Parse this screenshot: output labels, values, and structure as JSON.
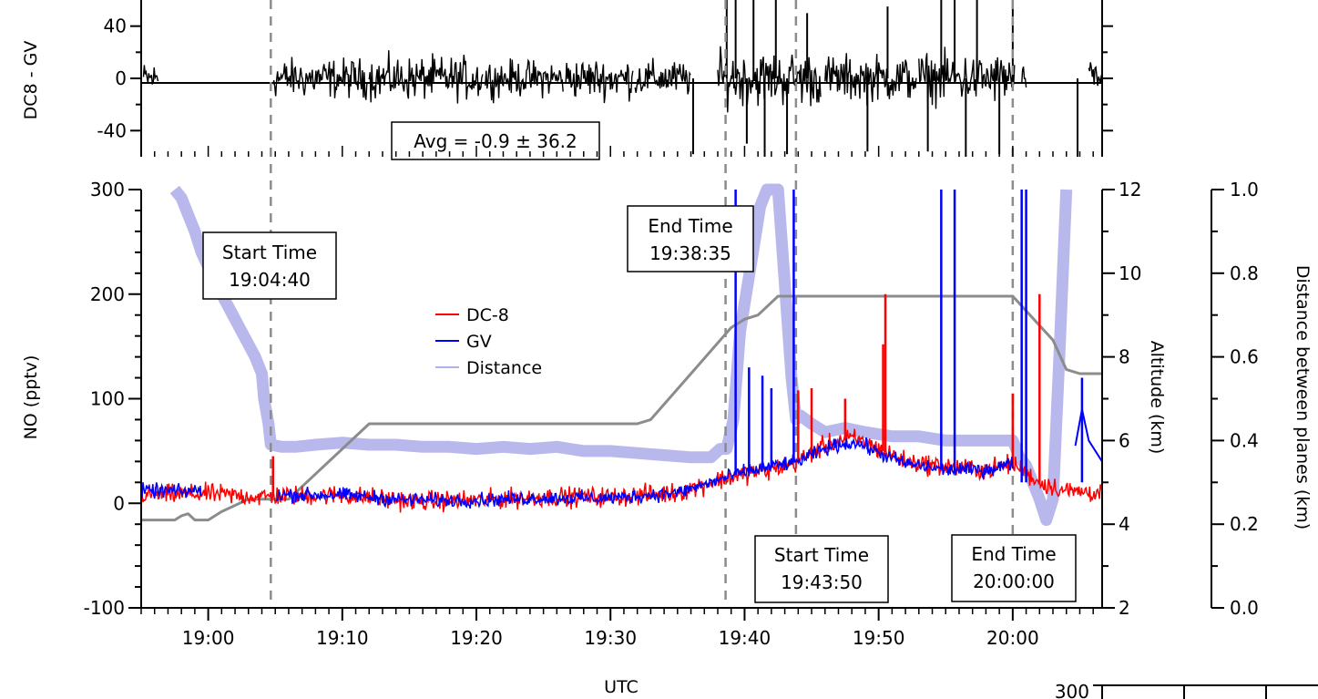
{
  "chart_data": [
    {
      "type": "line",
      "panel": "difference",
      "ylabel": "DC8 - GV",
      "xlim": [
        "18:55:00",
        "20:06:40"
      ],
      "ylim": [
        -60,
        60
      ],
      "yticks": [
        40,
        0,
        -40
      ],
      "yticklabels": [
        "40",
        "0",
        "-40"
      ],
      "zero_line": true,
      "series": [
        {
          "color": "#000000",
          "segments": [
            {
              "x": [
                "18:55:10",
                "18:56:20"
              ],
              "amp": 18
            },
            {
              "x": [
                "19:04:50",
                "19:11:50"
              ],
              "amp": 22
            },
            {
              "x": [
                "19:12:00",
                "19:20:30"
              ],
              "amp": 24
            },
            {
              "x": [
                "19:20:40",
                "19:26:30"
              ],
              "amp": 20
            },
            {
              "x": [
                "19:26:40",
                "19:31:40"
              ],
              "amp": 22
            },
            {
              "x": [
                "19:31:50",
                "19:36:00"
              ],
              "amp": 20
            },
            {
              "x": [
                "19:38:00",
                "19:45:40"
              ],
              "amp": 30
            },
            {
              "x": [
                "19:46:00",
                "19:52:50"
              ],
              "amp": 26
            },
            {
              "x": [
                "19:53:00",
                "20:00:10"
              ],
              "amp": 28
            },
            {
              "x": [
                "20:00:40",
                "20:01:00"
              ],
              "amp": 14
            },
            {
              "x": [
                "20:05:40",
                "20:06:40"
              ],
              "amp": 18
            }
          ],
          "spikes": [
            {
              "x": "19:36:10",
              "y": -58
            },
            {
              "x": "19:38:40",
              "y": 60
            },
            {
              "x": "19:39:20",
              "y": 60
            },
            {
              "x": "19:40:10",
              "y": -50
            },
            {
              "x": "19:40:40",
              "y": 60
            },
            {
              "x": "19:41:30",
              "y": -60
            },
            {
              "x": "19:42:20",
              "y": 60
            },
            {
              "x": "19:43:10",
              "y": -58
            },
            {
              "x": "19:44:40",
              "y": 50
            },
            {
              "x": "19:49:10",
              "y": -56
            },
            {
              "x": "19:50:40",
              "y": 55
            },
            {
              "x": "19:53:40",
              "y": -56
            },
            {
              "x": "19:54:40",
              "y": 60
            },
            {
              "x": "19:55:40",
              "y": 60
            },
            {
              "x": "19:56:30",
              "y": -60
            },
            {
              "x": "19:57:20",
              "y": 60
            },
            {
              "x": "19:59:00",
              "y": -58
            },
            {
              "x": "20:00:00",
              "y": 60
            },
            {
              "x": "20:04:50",
              "y": -60
            }
          ]
        }
      ],
      "annotation": "Avg = -0.9 ± 36.2"
    },
    {
      "type": "line",
      "panel": "main",
      "xlabel": "UTC",
      "xlim": [
        "18:55:00",
        "20:06:40"
      ],
      "xticks": [
        "19:00",
        "19:10",
        "19:20",
        "19:30",
        "19:40",
        "19:50",
        "20:00"
      ],
      "ylabel": "NO (pptv)",
      "ylim": [
        -100,
        300
      ],
      "yticks": [
        -100,
        0,
        100,
        200,
        300
      ],
      "yticklabels": [
        "-100",
        "0",
        "100",
        "200",
        "300"
      ],
      "y2label": "Altitude (km)",
      "y2lim": [
        2,
        12
      ],
      "y2ticks": [
        2,
        4,
        6,
        8,
        10,
        12
      ],
      "y2ticklabels": [
        "2",
        "4",
        "6",
        "8",
        "10",
        "12"
      ],
      "y3label": "Distance between planes (km)",
      "y3lim": [
        0.0,
        1.0
      ],
      "y3ticks": [
        0.0,
        0.2,
        0.4,
        0.6,
        0.8,
        1.0
      ],
      "y3ticklabels": [
        "0.0",
        "0.2",
        "0.4",
        "0.6",
        "0.8",
        "1.0"
      ],
      "legend": {
        "placement": "center",
        "entries": [
          {
            "name": "DC-8",
            "color": "#ff0000"
          },
          {
            "name": "GV",
            "color": "#0000ff"
          },
          {
            "name": "Distance",
            "color": "#b0b0ea"
          }
        ]
      },
      "series": [
        {
          "name": "Distance",
          "axis": "y3",
          "color": "#b0b0ea",
          "x": [
            "18:57:30",
            "18:58:00",
            "18:58:30",
            "18:59:00",
            "18:59:30",
            "19:00:30",
            "19:01:30",
            "19:02:30",
            "19:03:00",
            "19:03:30",
            "19:04:00",
            "19:04:10",
            "19:04:30",
            "19:04:40",
            "19:05:30",
            "19:06:30",
            "19:08:00",
            "19:10:00",
            "19:12:00",
            "19:14:00",
            "19:16:00",
            "19:18:00",
            "19:20:00",
            "19:22:00",
            "19:24:00",
            "19:26:00",
            "19:28:00",
            "19:30:00",
            "19:32:00",
            "19:34:00",
            "19:36:00",
            "19:37:30",
            "19:38:10",
            "19:38:40",
            "19:39:10",
            "19:39:40",
            "19:40:10",
            "19:40:40",
            "19:41:10",
            "19:41:40",
            "19:42:30",
            "19:43:30",
            "19:43:50",
            "19:44:10",
            "19:45:00",
            "19:46:00",
            "19:47:30",
            "19:49:00",
            "19:51:00",
            "19:53:00",
            "19:55:00",
            "19:57:00",
            "19:59:00",
            "20:00:00",
            "20:00:30",
            "20:01:00",
            "20:01:30",
            "20:02:00",
            "20:02:30",
            "20:03:00",
            "20:03:30",
            "20:04:00"
          ],
          "values": [
            1.0,
            0.98,
            0.94,
            0.9,
            0.85,
            0.78,
            0.72,
            0.66,
            0.63,
            0.6,
            0.56,
            0.5,
            0.44,
            0.39,
            0.385,
            0.385,
            0.39,
            0.395,
            0.39,
            0.39,
            0.385,
            0.385,
            0.38,
            0.385,
            0.38,
            0.385,
            0.375,
            0.375,
            0.37,
            0.365,
            0.36,
            0.36,
            0.38,
            0.38,
            0.45,
            0.66,
            0.76,
            0.86,
            0.96,
            1.0,
            1.0,
            0.55,
            0.45,
            0.46,
            0.44,
            0.42,
            0.43,
            0.42,
            0.41,
            0.41,
            0.4,
            0.4,
            0.4,
            0.4,
            0.36,
            0.34,
            0.3,
            0.26,
            0.21,
            0.26,
            0.62,
            1.0
          ]
        },
        {
          "name": "Altitude",
          "axis": "y2",
          "color": "#8c8c8c",
          "x": [
            "18:55:00",
            "18:57:30",
            "18:58:00",
            "18:58:30",
            "18:59:00",
            "19:00:00",
            "19:01:00",
            "19:03:00",
            "19:04:00",
            "19:05:00",
            "19:06:00",
            "19:12:00",
            "19:20:00",
            "19:32:00",
            "19:33:00",
            "19:36:00",
            "19:39:00",
            "19:40:00",
            "19:41:00",
            "19:42:30",
            "19:44:00",
            "19:50:00",
            "20:00:00",
            "20:01:00",
            "20:03:00",
            "20:04:00",
            "20:05:00",
            "20:06:40"
          ],
          "values": [
            4.1,
            4.1,
            4.2,
            4.25,
            4.1,
            4.1,
            4.3,
            4.6,
            4.6,
            4.6,
            4.6,
            6.4,
            6.4,
            6.4,
            6.5,
            7.6,
            8.7,
            8.9,
            9.0,
            9.45,
            9.45,
            9.45,
            9.45,
            9.1,
            8.4,
            7.7,
            7.6,
            7.6
          ]
        },
        {
          "name": "DC-8",
          "axis": "y",
          "color": "#ff0000",
          "x": [
            "18:55:00",
            "19:00:00",
            "19:04:00",
            "19:05:00",
            "19:10:00",
            "19:15:00",
            "19:20:00",
            "19:25:00",
            "19:30:00",
            "19:35:00",
            "19:38:00",
            "19:40:00",
            "19:42:00",
            "19:44:00",
            "19:45:00",
            "19:46:00",
            "19:47:00",
            "19:48:00",
            "19:49:00",
            "19:50:00",
            "19:52:00",
            "19:55:00",
            "19:58:00",
            "20:00:00",
            "20:02:00",
            "20:04:00",
            "20:06:40"
          ],
          "values": [
            8,
            9,
            6,
            7,
            8,
            2,
            3,
            6,
            6,
            10,
            22,
            28,
            32,
            40,
            48,
            55,
            60,
            62,
            58,
            52,
            40,
            35,
            32,
            38,
            20,
            12,
            10
          ],
          "noise": 14,
          "spikes": [
            {
              "x": "19:04:50",
              "y": 45
            },
            {
              "x": "19:50:30",
              "y": 200
            },
            {
              "x": "19:50:20",
              "y": 152
            },
            {
              "x": "19:44:00",
              "y": 108
            },
            {
              "x": "19:45:00",
              "y": 110
            },
            {
              "x": "19:47:30",
              "y": 100
            },
            {
              "x": "20:00:00",
              "y": 105
            },
            {
              "x": "20:02:00",
              "y": 200
            }
          ]
        },
        {
          "name": "GV",
          "axis": "y",
          "color": "#0000ff",
          "x": [
            "18:55:00",
            "18:56:00",
            "18:57:00",
            "18:58:00",
            "18:59:00",
            "18:59:30",
            "19:04:40",
            "19:05:00",
            "19:10:00",
            "19:15:00",
            "19:20:00",
            "19:25:00",
            "19:30:00",
            "19:35:00",
            "19:38:00",
            "19:40:00",
            "19:42:00",
            "19:44:00",
            "19:45:00",
            "19:46:00",
            "19:47:00",
            "19:48:00",
            "19:49:00",
            "19:50:00",
            "19:52:00",
            "19:55:00",
            "19:58:00",
            "20:00:00",
            "20:00:40"
          ],
          "values": [
            12,
            12,
            12,
            11,
            12,
            12,
            null,
            8,
            8,
            3,
            3,
            5,
            5,
            10,
            22,
            30,
            35,
            40,
            46,
            52,
            56,
            58,
            55,
            48,
            38,
            32,
            32,
            38,
            null
          ],
          "noise": 10,
          "spikes": [
            {
              "x": "19:39:20",
              "y": 300
            },
            {
              "x": "19:41:20",
              "y": 122
            },
            {
              "x": "19:42:00",
              "y": 110
            },
            {
              "x": "19:43:40",
              "y": 300
            },
            {
              "x": "19:54:40",
              "y": 300
            },
            {
              "x": "19:55:40",
              "y": 300
            },
            {
              "x": "20:00:40",
              "y": 300
            },
            {
              "x": "20:01:00",
              "y": 300
            },
            {
              "x": "20:05:10",
              "y": 120
            },
            {
              "x": "19:40:20",
              "y": 130
            }
          ],
          "tail": {
            "x": [
              "20:04:40",
              "20:05:10",
              "20:05:40",
              "20:06:40"
            ],
            "values": [
              55,
              90,
              60,
              40
            ]
          }
        }
      ],
      "vlines": [
        {
          "x": "19:04:40",
          "color": "#8c8c8c",
          "style": "dashed"
        },
        {
          "x": "19:38:35",
          "color": "#8c8c8c",
          "style": "dashed"
        },
        {
          "x": "19:43:50",
          "color": "#8c8c8c",
          "style": "dashed"
        },
        {
          "x": "20:00:00",
          "color": "#8c8c8c",
          "style": "dashed"
        }
      ],
      "annotations": [
        {
          "lines": [
            "Start Time",
            "19:04:40"
          ],
          "anchor": "upper-left"
        },
        {
          "lines": [
            "End Time",
            "19:38:35"
          ],
          "anchor": "upper-middle"
        },
        {
          "lines": [
            "Start Time",
            "19:43:50"
          ],
          "anchor": "lower-middle"
        },
        {
          "lines": [
            "End Time",
            "20:00:00"
          ],
          "anchor": "lower-right"
        }
      ]
    },
    {
      "type": "line",
      "panel": "inset",
      "yticklabels": [
        "300"
      ]
    }
  ]
}
